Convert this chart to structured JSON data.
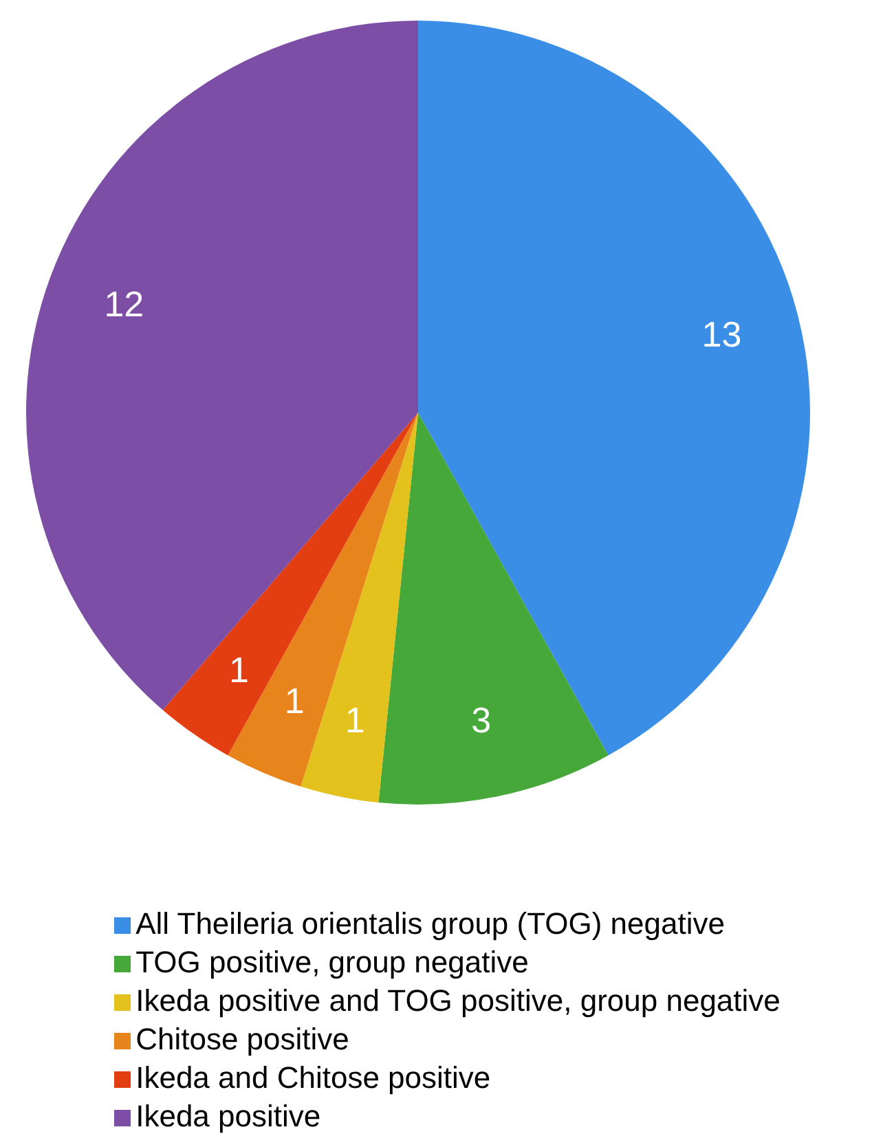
{
  "chart_data": {
    "type": "pie",
    "categories": [
      "All Theileria orientalis group (TOG) negative",
      "TOG positive, group negative",
      "Ikeda positive and TOG positive, group negative",
      "Chitose positive",
      "Ikeda and Chitose positive",
      "Ikeda positive"
    ],
    "values": [
      13,
      3,
      1,
      1,
      1,
      12
    ],
    "colors": [
      "#3a8ee6",
      "#47a83a",
      "#e3c21e",
      "#e8841c",
      "#e33d12",
      "#7c4ea6"
    ],
    "data_labels": true,
    "legend": "bottom"
  }
}
